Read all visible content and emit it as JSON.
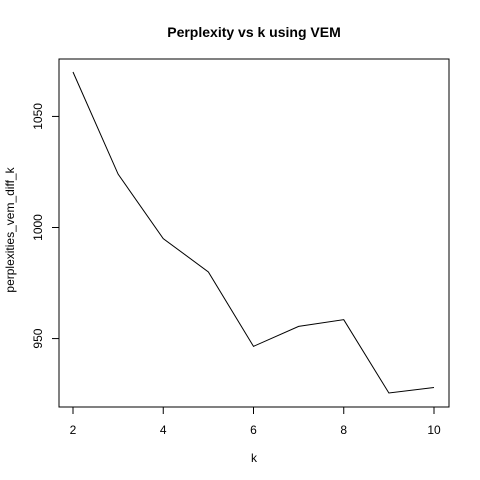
{
  "chart_data": {
    "type": "line",
    "title": "Perplexity vs k using VEM",
    "xlabel": "k",
    "ylabel": "perplexities_vem_diff_k",
    "x": [
      2,
      3,
      4,
      5,
      6,
      7,
      8,
      9,
      10
    ],
    "series": [
      {
        "values": [
          1070,
          1024,
          995,
          980,
          946.5,
          955.5,
          958.5,
          925.5,
          928
        ]
      }
    ],
    "xlim": [
      2,
      10
    ],
    "ylim": [
      925.5,
      1070
    ],
    "x_ticks": [
      "2",
      "4",
      "6",
      "8",
      "10"
    ],
    "y_ticks": [
      "950",
      "1000",
      "1050"
    ],
    "grid": false,
    "line_color": "#000000"
  }
}
